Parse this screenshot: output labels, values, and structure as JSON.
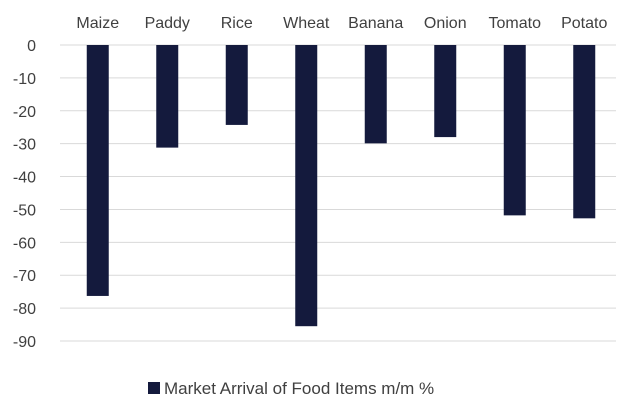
{
  "chart_data": {
    "type": "bar",
    "categories": [
      "Maize",
      "Paddy",
      "Rice",
      "Wheat",
      "Banana",
      "Onion",
      "Tomato",
      "Potato"
    ],
    "series": [
      {
        "name": "Market Arrival of Food Items m/m %",
        "values": [
          -76.3,
          -31.2,
          -24.3,
          -85.5,
          -29.9,
          -28.0,
          -51.8,
          -52.7
        ],
        "color": "#141a3d"
      }
    ],
    "ylim": [
      -90,
      0
    ],
    "yticks": [
      0,
      -10,
      -20,
      -30,
      -40,
      -50,
      -60,
      -70,
      -80,
      -90
    ],
    "grid": true,
    "gridColor": "#d9d9d9",
    "categoryAxisPosition": "top",
    "legendPosition": "bottom"
  }
}
